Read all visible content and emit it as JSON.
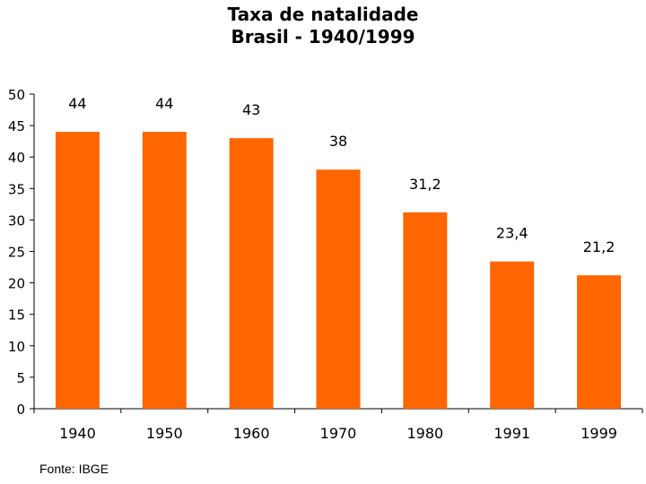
{
  "chart_data": {
    "type": "bar",
    "title": "Taxa de natalidade",
    "subtitle": "Brasil - 1940/1999",
    "categories": [
      "1940",
      "1950",
      "1960",
      "1970",
      "1980",
      "1991",
      "1999"
    ],
    "values": [
      44,
      44,
      43,
      38,
      31.2,
      23.4,
      21.2
    ],
    "value_labels": [
      "44",
      "44",
      "43",
      "38",
      "31,2",
      "23,4",
      "21,2"
    ],
    "ylim": [
      0,
      50
    ],
    "yticks": [
      0,
      5,
      10,
      15,
      20,
      25,
      30,
      35,
      40,
      45,
      50
    ],
    "bar_color": "#FF6600",
    "grid": false,
    "legend": "none"
  },
  "source": "Fonte: IBGE"
}
